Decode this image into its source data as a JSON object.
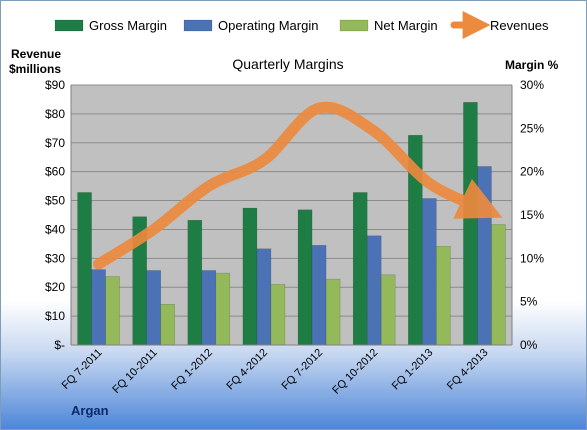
{
  "chart_data": {
    "type": "bar",
    "title": "Quarterly Margins",
    "left_axis_label_line1": "Revenue",
    "left_axis_label_line2": "$millions",
    "right_axis_label": "Margin %",
    "company": "Argan",
    "categories": [
      "FQ 7-2011",
      "FQ 10-2011",
      "FQ 1-2012",
      "FQ 4-2012",
      "FQ 7-2012",
      "FQ 10-2012",
      "FQ 1-2013",
      "FQ 4-2013"
    ],
    "left_ticks": [
      "$-",
      "$10",
      "$20",
      "$30",
      "$40",
      "$50",
      "$60",
      "$70",
      "$80",
      "$90"
    ],
    "right_ticks": [
      "0%",
      "5%",
      "10%",
      "15%",
      "20%",
      "25%",
      "30%"
    ],
    "ylim_left": [
      0,
      90
    ],
    "ylim_right": [
      0,
      30
    ],
    "legend_position": "top",
    "series": [
      {
        "name": "Gross Margin",
        "kind": "bar",
        "axis": "right",
        "unit": "%",
        "color": "#1e7d45",
        "values": [
          17.6,
          14.8,
          14.4,
          15.8,
          15.6,
          17.6,
          24.2,
          28.0
        ]
      },
      {
        "name": "Operating Margin",
        "kind": "bar",
        "axis": "right",
        "unit": "%",
        "color": "#4a72b4",
        "values": [
          8.7,
          8.6,
          8.6,
          11.1,
          11.5,
          12.6,
          16.9,
          20.6
        ]
      },
      {
        "name": "Net Margin",
        "kind": "bar",
        "axis": "right",
        "unit": "%",
        "color": "#93b95a",
        "values": [
          7.9,
          4.7,
          8.3,
          7.0,
          7.6,
          8.1,
          11.4,
          13.9
        ]
      },
      {
        "name": "Revenues",
        "kind": "line",
        "axis": "left",
        "unit": "$M",
        "color": "#ec8a3e",
        "values": [
          28,
          40,
          55,
          64,
          82,
          74,
          56,
          47
        ]
      }
    ],
    "grid": true,
    "plot_background": "#c0c0c0"
  }
}
